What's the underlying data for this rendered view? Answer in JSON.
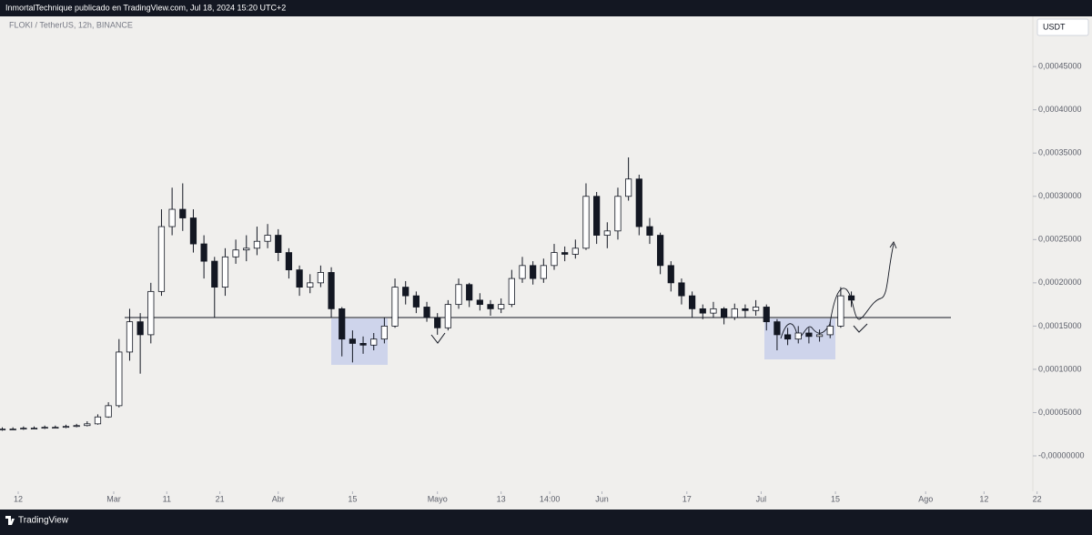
{
  "header": {
    "text": "InmortalTechnique publicado en TradingView.com, Jul 18, 2024 15:20 UTC+2"
  },
  "footer": {
    "brand": "TradingView"
  },
  "chart_data": {
    "type": "candlestick",
    "title": "FLOKI / TetherUS, 12h, BINANCE",
    "currency": "USDT",
    "up_color": "#ffffff",
    "down_color": "#131722",
    "grid": false,
    "xlim": [
      -3.43,
      191.2
    ],
    "ylim": [
      -4.1e-05,
      0.000508
    ],
    "xticks": [
      {
        "value": 0,
        "label": "12"
      },
      {
        "value": 18,
        "label": "Mar"
      },
      {
        "value": 28,
        "label": "11"
      },
      {
        "value": 38,
        "label": "21"
      },
      {
        "value": 49,
        "label": "Abr"
      },
      {
        "value": 63,
        "label": "15"
      },
      {
        "value": 79,
        "label": "Mayo"
      },
      {
        "value": 91,
        "label": "13"
      },
      {
        "value": 100.17,
        "label": "14:00"
      },
      {
        "value": 110,
        "label": "Jun"
      },
      {
        "value": 126,
        "label": "17"
      },
      {
        "value": 140,
        "label": "Jul"
      },
      {
        "value": 154,
        "label": "15"
      },
      {
        "value": 171,
        "label": "Ago"
      },
      {
        "value": 182,
        "label": "12"
      },
      {
        "value": 192,
        "label": "22"
      }
    ],
    "yticks": [
      {
        "value": 0.00045,
        "label": "0,00045000"
      },
      {
        "value": 0.0004,
        "label": "0,00040000"
      },
      {
        "value": 0.00035,
        "label": "0,00035000"
      },
      {
        "value": 0.0003,
        "label": "0,00030000"
      },
      {
        "value": 0.00025,
        "label": "0,00025000"
      },
      {
        "value": 0.0002,
        "label": "0,00020000"
      },
      {
        "value": 0.00015,
        "label": "0,00015000"
      },
      {
        "value": 0.0001,
        "label": "0,00010000"
      },
      {
        "value": 5e-05,
        "label": "0,00005000"
      },
      {
        "value": 0,
        "label": "-0,00000000"
      }
    ],
    "x": [
      -3,
      -1,
      1,
      3,
      5,
      7,
      9,
      11,
      13,
      15,
      17,
      19,
      21,
      23,
      25,
      27,
      29,
      31,
      33,
      35,
      37,
      39,
      41,
      43,
      45,
      47,
      49,
      51,
      53,
      55,
      57,
      59,
      61,
      63,
      65,
      67,
      69,
      71,
      73,
      75,
      77,
      79,
      81,
      83,
      85,
      87,
      89,
      91,
      93,
      95,
      97,
      99,
      101,
      103,
      105,
      107,
      109,
      111,
      113,
      115,
      117,
      119,
      121,
      123,
      125,
      127,
      129,
      131,
      133,
      135,
      137,
      139,
      141,
      143,
      145,
      147,
      149,
      151,
      153,
      155,
      157
    ],
    "open": [
      3e-05,
      3.1e-05,
      3.1e-05,
      3.2e-05,
      3.2e-05,
      3.3e-05,
      3.3e-05,
      3.4e-05,
      3.5e-05,
      3.7e-05,
      4.5e-05,
      5.8e-05,
      0.00012,
      0.000155,
      0.00014,
      0.00019,
      0.000265,
      0.000285,
      0.000275,
      0.000245,
      0.000225,
      0.000195,
      0.00023,
      0.000238,
      0.00024,
      0.000248,
      0.000255,
      0.000235,
      0.000215,
      0.000195,
      0.0002,
      0.000212,
      0.00017,
      0.000135,
      0.00013,
      0.000128,
      0.000135,
      0.00015,
      0.000195,
      0.000185,
      0.000172,
      0.00016,
      0.000148,
      0.000175,
      0.000198,
      0.00018,
      0.000175,
      0.00017,
      0.000175,
      0.000205,
      0.00022,
      0.000205,
      0.00022,
      0.000235,
      0.000233,
      0.00024,
      0.0003,
      0.000255,
      0.00026,
      0.0003,
      0.00032,
      0.000265,
      0.000255,
      0.00022,
      0.0002,
      0.000185,
      0.00017,
      0.000165,
      0.00017,
      0.00016,
      0.00017,
      0.000168,
      0.000172,
      0.000155,
      0.00014,
      0.000135,
      0.000142,
      0.000138,
      0.00014,
      0.00015,
      0.000185
    ],
    "close": [
      3.1e-05,
      3.1e-05,
      3.2e-05,
      3.2e-05,
      3.3e-05,
      3.3e-05,
      3.4e-05,
      3.5e-05,
      3.7e-05,
      4.5e-05,
      5.8e-05,
      0.00012,
      0.000155,
      0.00014,
      0.00019,
      0.000265,
      0.000285,
      0.000275,
      0.000245,
      0.000225,
      0.000195,
      0.00023,
      0.000238,
      0.00024,
      0.000248,
      0.000255,
      0.000235,
      0.000215,
      0.000195,
      0.0002,
      0.000212,
      0.00017,
      0.000135,
      0.00013,
      0.000128,
      0.000135,
      0.00015,
      0.000195,
      0.000185,
      0.000172,
      0.00016,
      0.000148,
      0.000175,
      0.000198,
      0.00018,
      0.000175,
      0.00017,
      0.000175,
      0.000205,
      0.00022,
      0.000205,
      0.00022,
      0.000235,
      0.000233,
      0.00024,
      0.0003,
      0.000255,
      0.00026,
      0.0003,
      0.00032,
      0.000265,
      0.000255,
      0.00022,
      0.0002,
      0.000185,
      0.00017,
      0.000165,
      0.00017,
      0.00016,
      0.00017,
      0.000168,
      0.000172,
      0.000155,
      0.00014,
      0.000135,
      0.000142,
      0.000138,
      0.00014,
      0.00015,
      0.000185,
      0.00018
    ],
    "high": [
      3.3e-05,
      3.3e-05,
      3.4e-05,
      3.4e-05,
      3.5e-05,
      3.5e-05,
      3.6e-05,
      3.7e-05,
      4e-05,
      4.8e-05,
      6.2e-05,
      0.000135,
      0.00017,
      0.000165,
      0.0002,
      0.000285,
      0.00031,
      0.000315,
      0.000285,
      0.000255,
      0.00023,
      0.00024,
      0.00025,
      0.000255,
      0.000265,
      0.000268,
      0.000262,
      0.00024,
      0.00022,
      0.00021,
      0.00022,
      0.000218,
      0.000172,
      0.000145,
      0.000138,
      0.000142,
      0.00016,
      0.000205,
      0.000202,
      0.00019,
      0.000178,
      0.000165,
      0.00018,
      0.000205,
      0.0002,
      0.000188,
      0.00018,
      0.000182,
      0.000215,
      0.00023,
      0.000225,
      0.000228,
      0.000245,
      0.000242,
      0.00025,
      0.000315,
      0.000305,
      0.00027,
      0.00031,
      0.000345,
      0.000325,
      0.000275,
      0.000258,
      0.000225,
      0.000205,
      0.00019,
      0.000175,
      0.000178,
      0.000172,
      0.000176,
      0.000175,
      0.00018,
      0.000175,
      0.000158,
      0.000148,
      0.00015,
      0.000148,
      0.000146,
      0.000155,
      0.000195,
      0.00019
    ],
    "low": [
      2.9e-05,
      3e-05,
      3e-05,
      3.1e-05,
      3.1e-05,
      3.2e-05,
      3.2e-05,
      3.3e-05,
      3.4e-05,
      3.6e-05,
      4.4e-05,
      5.6e-05,
      0.00011,
      9.5e-05,
      0.00013,
      0.000185,
      0.000255,
      0.00026,
      0.000235,
      0.000205,
      0.00016,
      0.000185,
      0.000222,
      0.000225,
      0.000232,
      0.00024,
      0.000225,
      0.000205,
      0.000185,
      0.000188,
      0.000195,
      0.00016,
      0.000115,
      0.000108,
      0.000118,
      0.000122,
      0.00013,
      0.000148,
      0.000175,
      0.000165,
      0.000155,
      0.00014,
      0.000145,
      0.00017,
      0.000172,
      0.000168,
      0.000162,
      0.000165,
      0.000172,
      0.0002,
      0.000198,
      0.0002,
      0.000215,
      0.000225,
      0.000228,
      0.000238,
      0.000245,
      0.00024,
      0.00025,
      0.000295,
      0.000255,
      0.000245,
      0.00021,
      0.00019,
      0.000175,
      0.00016,
      0.000158,
      0.00016,
      0.000152,
      0.000157,
      0.00016,
      0.000162,
      0.000145,
      0.000122,
      0.000128,
      0.00013,
      0.00013,
      0.000132,
      0.000136,
      0.000148,
      0.000172
    ]
  }
}
